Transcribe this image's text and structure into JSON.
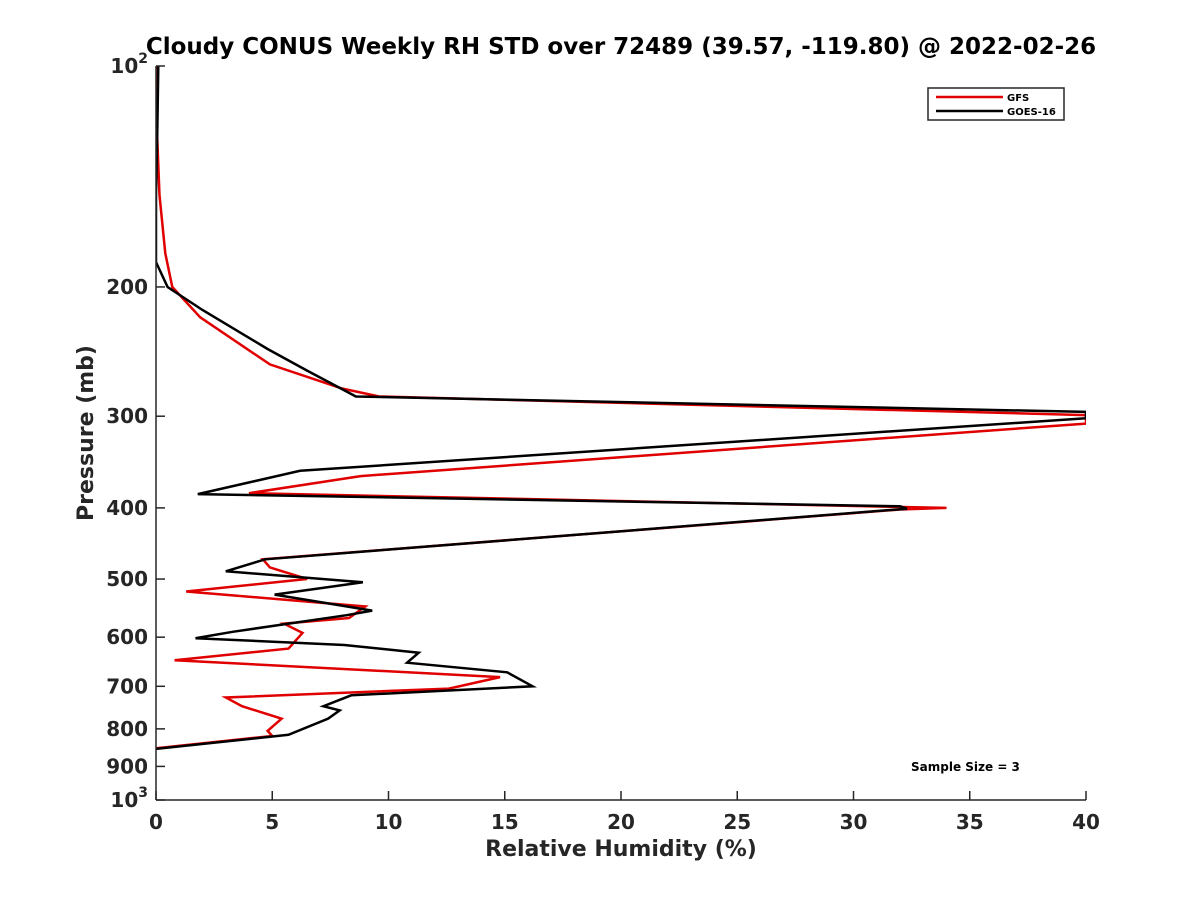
{
  "chart_data": {
    "type": "line",
    "title": "Cloudy CONUS Weekly RH STD over 72489 (39.57, -119.80) @ 2022-02-26",
    "xlabel": "Relative Humidity (%)",
    "ylabel": "Pressure (mb)",
    "xlim": [
      0,
      40
    ],
    "ylim": [
      100,
      1000
    ],
    "y_scale": "log",
    "y_reversed": true,
    "grid": false,
    "legend_position": "top-right",
    "x_ticks": [
      0,
      5,
      10,
      15,
      20,
      25,
      30,
      35,
      40
    ],
    "x_tick_labels": [
      "0",
      "5",
      "10",
      "15",
      "20",
      "25",
      "30",
      "35",
      "40"
    ],
    "y_ticks": [
      100,
      200,
      300,
      400,
      500,
      600,
      700,
      800,
      900,
      1000
    ],
    "y_tick_labels": [
      {
        "base": "10",
        "exp": "2"
      },
      {
        "base": "200",
        "exp": ""
      },
      {
        "base": "300",
        "exp": ""
      },
      {
        "base": "400",
        "exp": ""
      },
      {
        "base": "500",
        "exp": ""
      },
      {
        "base": "600",
        "exp": ""
      },
      {
        "base": "700",
        "exp": ""
      },
      {
        "base": "800",
        "exp": ""
      },
      {
        "base": "900",
        "exp": ""
      },
      {
        "base": "10",
        "exp": "3"
      }
    ],
    "series": [
      {
        "name": "GFS",
        "color": "#e00000",
        "points": [
          [
            0.0,
            100
          ],
          [
            0.05,
            125
          ],
          [
            0.15,
            150
          ],
          [
            0.4,
            180
          ],
          [
            0.7,
            200
          ],
          [
            1.9,
            220
          ],
          [
            4.9,
            255
          ],
          [
            8.0,
            275
          ],
          [
            9.6,
            282
          ],
          [
            40.0,
            299
          ],
          [
            40.0,
            307
          ],
          [
            8.8,
            362
          ],
          [
            4.0,
            382
          ],
          [
            34.0,
            400
          ],
          [
            32.0,
            402
          ],
          [
            4.6,
            470
          ],
          [
            4.9,
            482
          ],
          [
            6.5,
            500
          ],
          [
            1.3,
            520
          ],
          [
            9.0,
            545
          ],
          [
            8.3,
            565
          ],
          [
            5.5,
            575
          ],
          [
            6.3,
            592
          ],
          [
            5.7,
            622
          ],
          [
            0.8,
            645
          ],
          [
            14.8,
            680
          ],
          [
            12.6,
            705
          ],
          [
            3.0,
            725
          ],
          [
            3.7,
            745
          ],
          [
            5.4,
            775
          ],
          [
            4.8,
            805
          ],
          [
            5.0,
            818
          ],
          [
            0.0,
            850
          ]
        ]
      },
      {
        "name": "GOES-16",
        "color": "#000000",
        "points": [
          [
            0.1,
            100
          ],
          [
            0.05,
            125
          ],
          [
            0.0,
            150
          ],
          [
            0.0,
            185
          ],
          [
            0.5,
            200
          ],
          [
            2.0,
            215
          ],
          [
            4.8,
            243
          ],
          [
            6.5,
            260
          ],
          [
            8.6,
            282
          ],
          [
            40.0,
            296
          ],
          [
            40.0,
            302
          ],
          [
            6.2,
            356
          ],
          [
            1.8,
            383
          ],
          [
            32.0,
            398
          ],
          [
            32.3,
            401
          ],
          [
            4.7,
            470
          ],
          [
            3.0,
            488
          ],
          [
            8.9,
            505
          ],
          [
            5.1,
            525
          ],
          [
            9.3,
            552
          ],
          [
            8.2,
            560
          ],
          [
            3.3,
            590
          ],
          [
            1.7,
            602
          ],
          [
            8.1,
            615
          ],
          [
            11.3,
            630
          ],
          [
            10.8,
            650
          ],
          [
            15.1,
            670
          ],
          [
            16.2,
            700
          ],
          [
            8.4,
            720
          ],
          [
            7.2,
            745
          ],
          [
            7.9,
            755
          ],
          [
            7.4,
            775
          ],
          [
            5.7,
            815
          ],
          [
            0.0,
            852
          ]
        ]
      }
    ],
    "annotation": "Sample Size = 3"
  }
}
